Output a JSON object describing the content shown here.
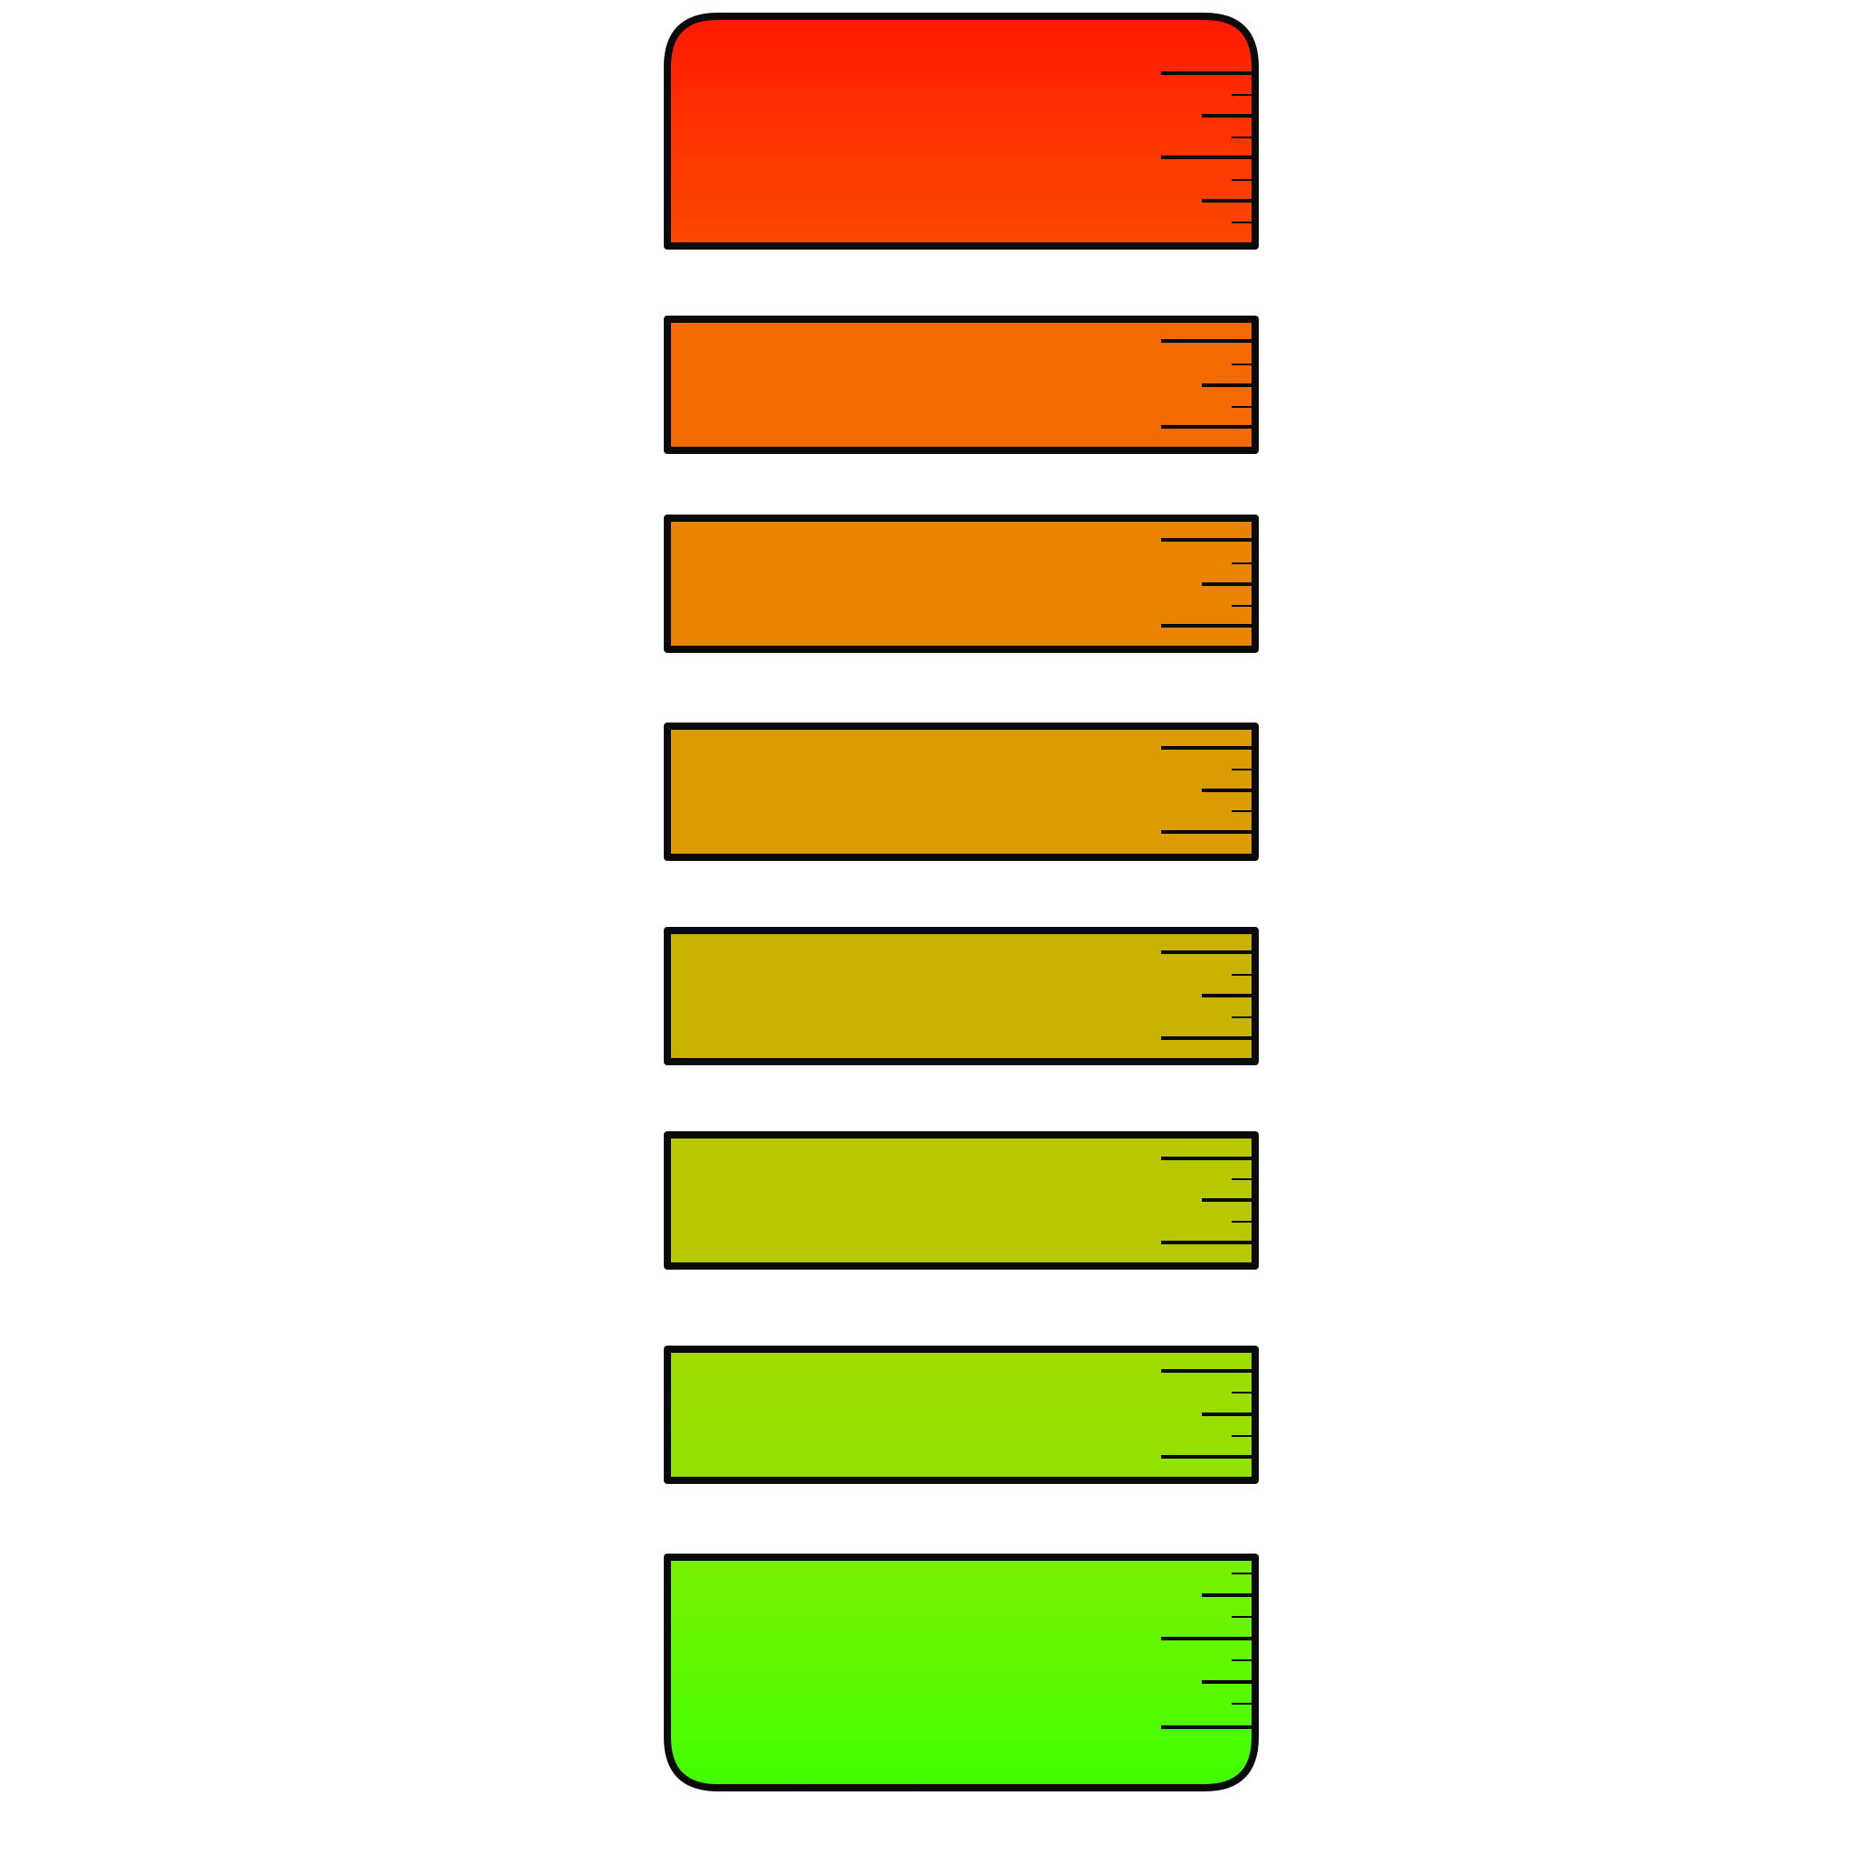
{
  "gauge": {
    "segments": [
      {
        "id": "segment-1",
        "color_top": "#ff1a00",
        "color_bottom": "#fc4a00",
        "shape": "rounded-top",
        "minor_ticks_between_major": 3
      },
      {
        "id": "segment-2",
        "color_top": "#f36a00",
        "color_bottom": "#f36a00",
        "shape": "rect",
        "minor_ticks_between_major": 1
      },
      {
        "id": "segment-3",
        "color_top": "#e88400",
        "color_bottom": "#e88400",
        "shape": "rect",
        "minor_ticks_between_major": 1
      },
      {
        "id": "segment-4",
        "color_top": "#da9c00",
        "color_bottom": "#da9c00",
        "shape": "rect",
        "minor_ticks_between_major": 1
      },
      {
        "id": "segment-5",
        "color_top": "#cab200",
        "color_bottom": "#cab200",
        "shape": "rect",
        "minor_ticks_between_major": 1
      },
      {
        "id": "segment-6",
        "color_top": "#b8c800",
        "color_bottom": "#b8c800",
        "shape": "rect",
        "minor_ticks_between_major": 1
      },
      {
        "id": "segment-7",
        "color_top": "#a0da00",
        "color_bottom": "#90e200",
        "shape": "rect",
        "minor_ticks_between_major": 1
      },
      {
        "id": "segment-8",
        "color_top": "#78f000",
        "color_bottom": "#40ff00",
        "shape": "rounded-bottom",
        "minor_ticks_between_major": 1
      }
    ],
    "outline_color": "#0a0a0a",
    "tick_color": "#0a0a0a",
    "background_color": "#ffffff"
  }
}
